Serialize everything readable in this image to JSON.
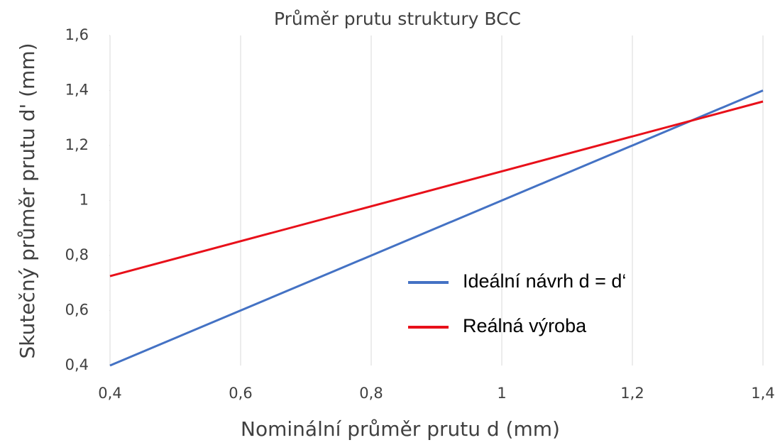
{
  "chart_data": {
    "type": "line",
    "title": "Průměr prutu struktury BCC",
    "xlabel": "Nominální průměr prutu d (mm)",
    "ylabel": "Skutečný průměr prutu d' (mm)",
    "x": [
      0.4,
      1.4
    ],
    "series": [
      {
        "name": "Ideální návrh d = d‘",
        "color": "#4472c4",
        "values": [
          0.4,
          1.4
        ]
      },
      {
        "name": "Reálná výroba",
        "color": "#e8101a",
        "values": [
          0.725,
          1.36
        ]
      }
    ],
    "xlim": [
      0.4,
      1.4
    ],
    "xticks": [
      {
        "value": 0.4,
        "label": "0,4"
      },
      {
        "value": 0.6,
        "label": "0,6"
      },
      {
        "value": 0.8,
        "label": "0,8"
      },
      1,
      {
        "value": 1.2,
        "label": "1,2"
      },
      {
        "value": 1.4,
        "label": "1,4"
      }
    ],
    "ylim": [
      0.4,
      1.6
    ],
    "yticks": [
      {
        "value": 0.4,
        "label": "0,4"
      },
      {
        "value": 0.6,
        "label": "0,6"
      },
      {
        "value": 0.8,
        "label": "0,8"
      },
      1,
      {
        "value": 1.2,
        "label": "1,2"
      },
      {
        "value": 1.4,
        "label": "1,4"
      },
      {
        "value": 1.6,
        "label": "1,6"
      }
    ],
    "xgrid": true,
    "legend": "lower right"
  }
}
